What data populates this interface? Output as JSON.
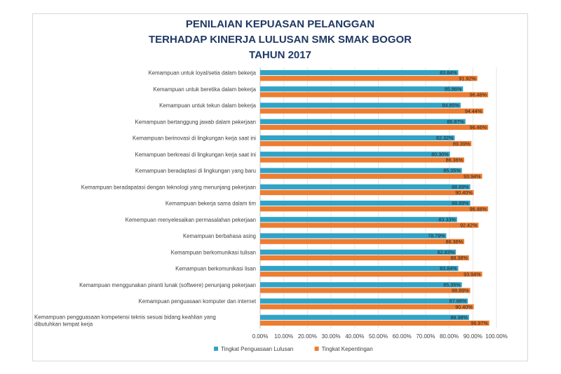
{
  "chart_data": {
    "type": "bar",
    "orientation": "horizontal",
    "title": [
      "PENILAIAN KEPUASAN PELANGGAN",
      "TERHADAP KINERJA LULUSAN SMK SMAK BOGOR",
      "TAHUN 2017"
    ],
    "categories": [
      "Kemampuan untuk loyal/setia dalam bekerja",
      "Kemampuan untuk beretika dalam bekerja",
      "Kemampuan untuk tekun dalam bekerja",
      "Kemampuan bertanggung jawab dalam pekerjaan",
      "Kemampuan berinovasi di lingkungan kerja saat ini",
      "Kemampuan berkreasi di lingkungan kerja saat ini",
      "Kemampuan beradaptasi di lingkungan yang baru",
      "Kemampuan beradapatasi dengan teknologi yang menunjang pekerjaan",
      "Kemampuan bekerja sama dalam tim",
      "Kemempuan menyelesaikan permasalahan pekerjaan",
      "Kemampuan berbahasa asing",
      "Kemampuan berkomunikasi tulisan",
      "Kemampuan berkomunikasi lisan",
      "Kemampuan menggunakan piranti lunak (softwere) penunjang pekerjaan",
      "Kemampuan penguasaan komputer dan internet",
      "Kemampuan pengguasaan kompetensi teknis sesuai bidang keahlian yang dibutuhkan tempat kerja"
    ],
    "series": [
      {
        "name": "Tingkat Penguasaan Lulusan",
        "color": "#31a3c6",
        "values": [
          83.84,
          85.86,
          84.85,
          86.87,
          82.32,
          80.3,
          85.35,
          88.89,
          88.89,
          83.33,
          78.79,
          82.83,
          83.84,
          85.35,
          87.88,
          88.38
        ],
        "labels": [
          "83.84%",
          "85.86%",
          "84.85%",
          "86.87%",
          "82.32%",
          "80.30%",
          "85.35%",
          "88.89%",
          "88.89%",
          "83.33%",
          "78.79%",
          "82.83%",
          "83.84%",
          "85.35%",
          "87.88%",
          "88.38%"
        ]
      },
      {
        "name": "Tingkat Kepentingan",
        "color": "#ed7d31",
        "values": [
          91.92,
          96.46,
          94.44,
          96.46,
          89.39,
          86.36,
          93.94,
          90.4,
          96.46,
          92.42,
          86.36,
          88.38,
          93.94,
          88.89,
          90.4,
          96.97
        ],
        "labels": [
          "91.92%",
          "96.46%",
          "94.44%",
          "96.46%",
          "89.39%",
          "86.36%",
          "93.94%",
          "90.40%",
          "96.46%",
          "92.42%",
          "86.36%",
          "88.38%",
          "93.94%",
          "88.89%",
          "90.40%",
          "96.97%"
        ]
      }
    ],
    "xlim": [
      0,
      100
    ],
    "xticks": [
      "0.00%",
      "10.00%",
      "20.00%",
      "30.00%",
      "40.00%",
      "50.00%",
      "60.00%",
      "70.00%",
      "80.00%",
      "90.00%",
      "100.00%"
    ],
    "grid": true,
    "legend": "bottom-left"
  }
}
